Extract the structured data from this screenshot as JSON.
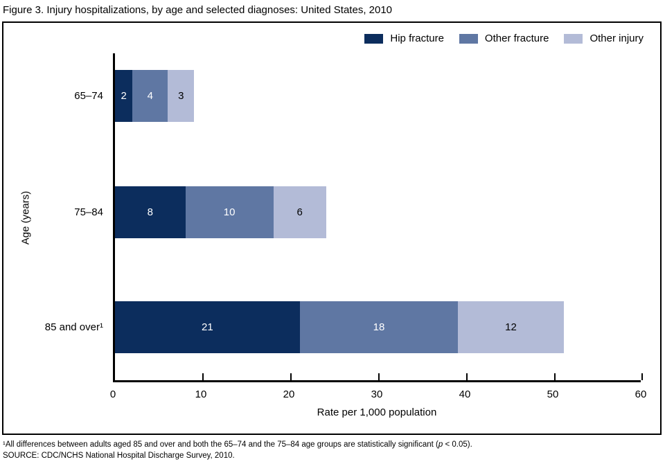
{
  "page": {
    "title": "Figure 3. Injury hospitalizations, by age and selected diagnoses: United States, 2010"
  },
  "footnotes": {
    "note1_pre": "¹All differences between adults aged 85 and over and both the 65–74 and the 75–84 age groups are statistically significant (",
    "note1_italic": "p",
    "note1_post": " < 0.05).",
    "source": "SOURCE: CDC/NCHS National Hospital Discharge Survey, 2010."
  },
  "chart_data": {
    "type": "bar",
    "orientation": "horizontal",
    "stacked": true,
    "title": "Figure 3. Injury hospitalizations, by age and selected diagnoses: United States, 2010",
    "categories": [
      "65–74",
      "75–84",
      "85 and over¹"
    ],
    "series": [
      {
        "name": "Hip fracture",
        "color": "#0c2d5d",
        "label_color": "#ffffff",
        "values": [
          2,
          8,
          21
        ]
      },
      {
        "name": "Other fracture",
        "color": "#5f77a3",
        "label_color": "#ffffff",
        "values": [
          4,
          10,
          18
        ]
      },
      {
        "name": "Other injury",
        "color": "#b3bbd7",
        "label_color": "#000000",
        "values": [
          3,
          6,
          12
        ]
      }
    ],
    "xlabel": "Rate per 1,000 population",
    "ylabel": "Age (years)",
    "xlim": [
      0,
      60
    ],
    "xticks": [
      0,
      10,
      20,
      30,
      40,
      50,
      60
    ],
    "legend_position": "top-right",
    "grid": false,
    "axis_color": "#000000"
  }
}
